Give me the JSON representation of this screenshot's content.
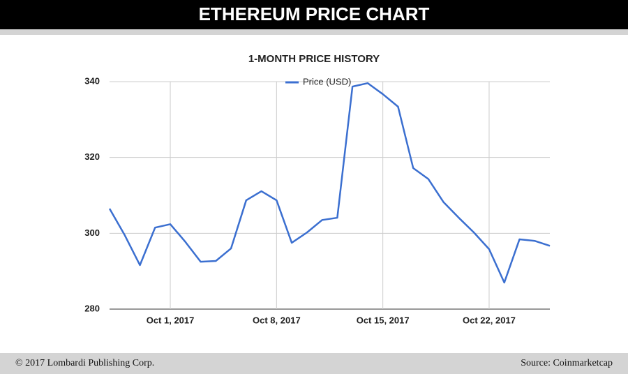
{
  "chart_data": {
    "type": "line",
    "title": "ETHEREUM PRICE CHART",
    "subtitle": "1-MONTH PRICE HISTORY",
    "x": [
      "2017-09-27",
      "2017-09-28",
      "2017-09-29",
      "2017-09-30",
      "2017-10-01",
      "2017-10-02",
      "2017-10-03",
      "2017-10-04",
      "2017-10-05",
      "2017-10-06",
      "2017-10-07",
      "2017-10-08",
      "2017-10-09",
      "2017-10-10",
      "2017-10-11",
      "2017-10-12",
      "2017-10-13",
      "2017-10-14",
      "2017-10-15",
      "2017-10-16",
      "2017-10-17",
      "2017-10-18",
      "2017-10-19",
      "2017-10-20",
      "2017-10-21",
      "2017-10-22",
      "2017-10-23",
      "2017-10-24",
      "2017-10-25",
      "2017-10-26"
    ],
    "series": [
      {
        "name": "Price (USD)",
        "color": "#3b6fd0",
        "values": [
          306.5,
          299.5,
          291.6,
          301.5,
          302.4,
          297.7,
          292.5,
          292.7,
          296,
          308.7,
          311.1,
          308.7,
          297.5,
          300.2,
          303.5,
          304.1,
          338.7,
          339.6,
          336.7,
          333.4,
          317.2,
          314.3,
          308.2,
          304.1,
          300.2,
          295.8,
          287,
          298.4,
          298,
          296.7
        ]
      }
    ],
    "xlim": [
      "2017-09-27",
      "2017-10-26"
    ],
    "xticks": [
      {
        "value": "2017-10-01",
        "label": "Oct 1, 2017"
      },
      {
        "value": "2017-10-08",
        "label": "Oct 8, 2017"
      },
      {
        "value": "2017-10-15",
        "label": "Oct 15, 2017"
      },
      {
        "value": "2017-10-22",
        "label": "Oct 22, 2017"
      }
    ],
    "ylim": [
      280,
      340
    ],
    "yticks": [
      280,
      300,
      320,
      340
    ],
    "grid": true,
    "legend": "top"
  },
  "footer": {
    "left": "© 2017 Lombardi Publishing Corp.",
    "right": "Source:  Coinmarketcap"
  }
}
